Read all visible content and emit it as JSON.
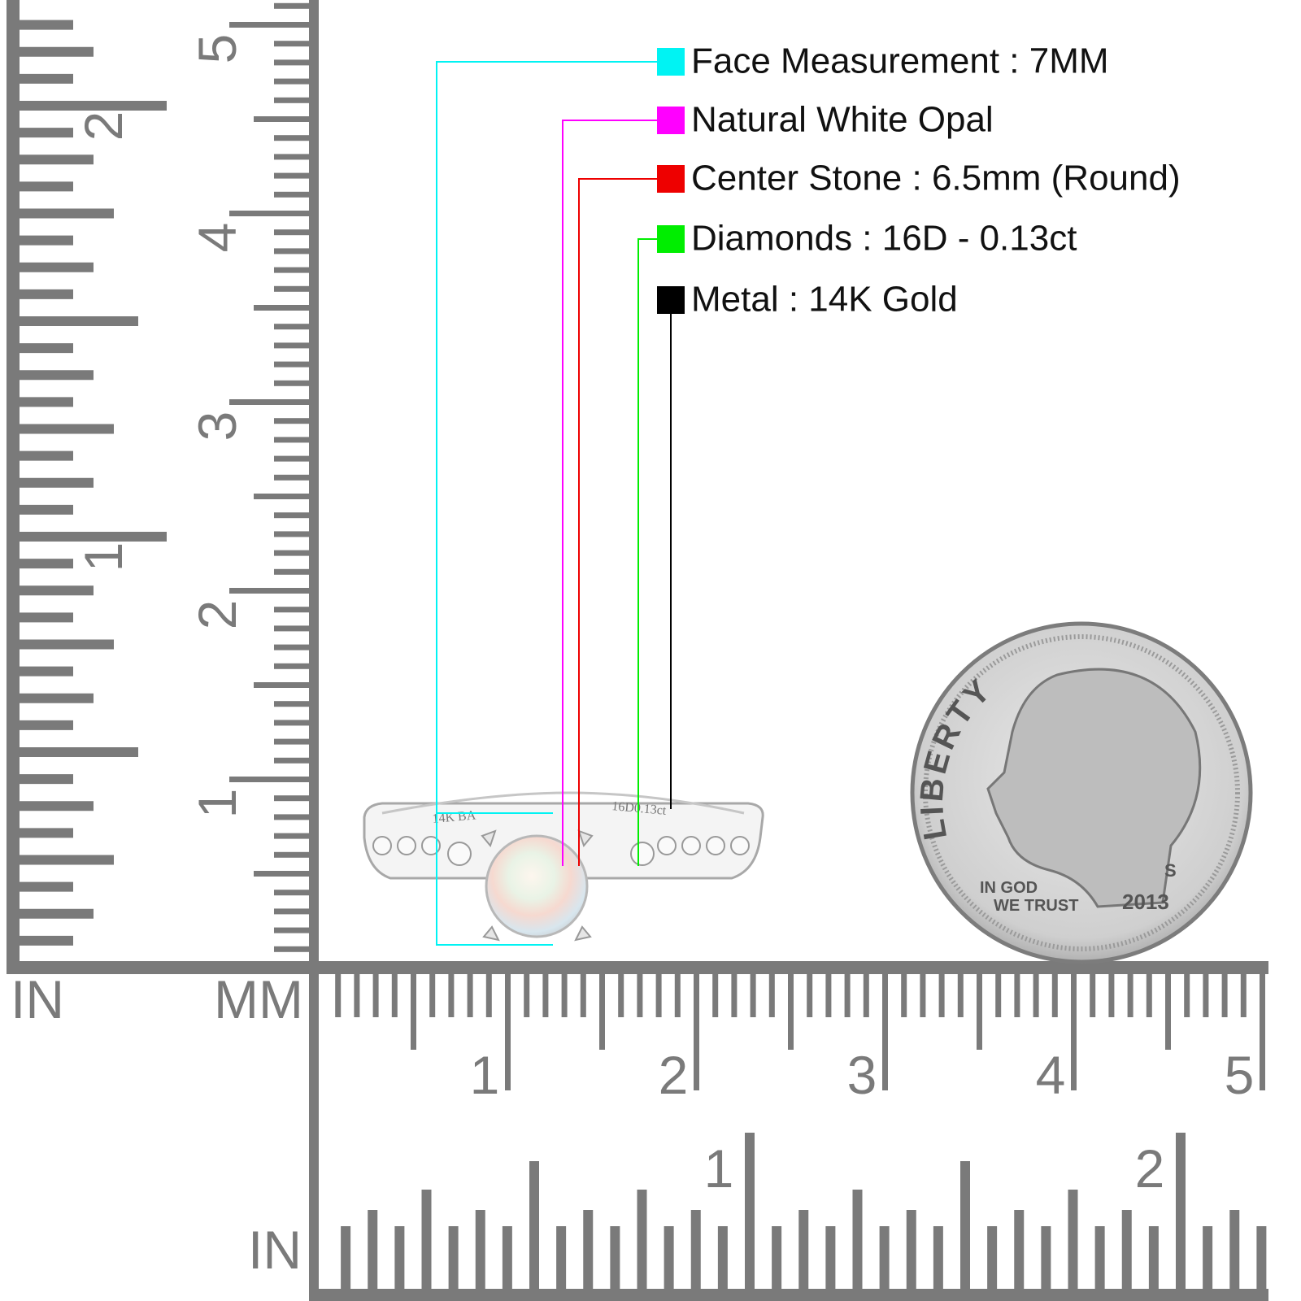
{
  "legend": [
    {
      "label": "Face Measurement : 7MM",
      "color": "#00f3f3"
    },
    {
      "label": "Natural White Opal",
      "color": "#ff00ff"
    },
    {
      "label": "Center Stone : 6.5mm (Round)",
      "color": "#ee0000"
    },
    {
      "label": "Diamonds : 16D - 0.13ct",
      "color": "#00ee00"
    },
    {
      "label": "Metal : 14K Gold",
      "color": "#000000"
    }
  ],
  "left_ruler": {
    "inch_label": "IN",
    "mm_label": "MM",
    "inch_numbers": [
      "1",
      "2"
    ],
    "cm_numbers": [
      "1",
      "2",
      "3",
      "4",
      "5"
    ]
  },
  "bottom_ruler": {
    "inch_label": "IN",
    "cm_numbers": [
      "1",
      "2",
      "3",
      "4",
      "5"
    ],
    "inch_numbers": [
      "1",
      "2"
    ]
  },
  "ring": {
    "engravings": [
      "14K BA",
      "16D0.13ct"
    ]
  },
  "coin": {
    "legend": "LIBERTY",
    "motto": [
      "IN GOD",
      "WE TRUST"
    ],
    "year": "2013",
    "mint_mark": "S"
  }
}
